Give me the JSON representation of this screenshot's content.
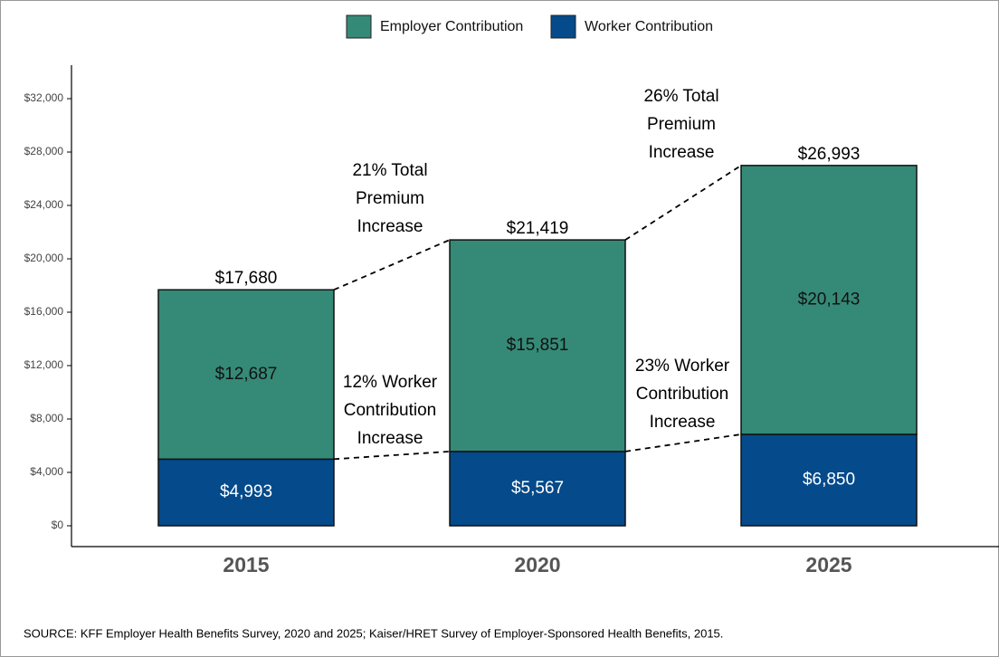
{
  "chart_data": {
    "type": "stacked_bar",
    "categories": [
      "2015",
      "2020",
      "2025"
    ],
    "series": [
      {
        "name": "Worker Contribution",
        "color": "#054a8a",
        "values": [
          4993,
          5567,
          6850
        ],
        "value_labels": [
          "$4,993",
          "$5,567",
          "$6,850"
        ]
      },
      {
        "name": "Employer Contribution",
        "color": "#358a77",
        "values": [
          12687,
          15851,
          20143
        ],
        "value_labels": [
          "$12,687",
          "$15,851",
          "$20,143"
        ]
      }
    ],
    "totals": {
      "values": [
        17680,
        21419,
        26993
      ],
      "value_labels": [
        "$17,680",
        "$21,419",
        "$26,993"
      ]
    },
    "annotations": [
      [
        "21% Total",
        "Premium",
        "Increase"
      ],
      [
        "26% Total",
        "Premium",
        "Increase"
      ],
      [
        "12% Worker",
        "Contribution",
        "Increase"
      ],
      [
        "23% Worker",
        "Contribution",
        "Increase"
      ]
    ],
    "ylim": [
      -1560,
      34510
    ],
    "yticks": [
      {
        "value": 0,
        "label": "$0"
      },
      {
        "value": 4000,
        "label": "$4,000"
      },
      {
        "value": 8000,
        "label": "$8,000"
      },
      {
        "value": 12000,
        "label": "$12,000"
      },
      {
        "value": 16000,
        "label": "$16,000"
      },
      {
        "value": 20000,
        "label": "$20,000"
      },
      {
        "value": 24000,
        "label": "$24,000"
      },
      {
        "value": 28000,
        "label": "$28,000"
      },
      {
        "value": 32000,
        "label": "$32,000"
      }
    ],
    "source": "SOURCE: KFF Employer Health Benefits Survey, 2020 and 2025; Kaiser/HRET Survey of Employer-Sponsored Health Benefits, 2015."
  }
}
